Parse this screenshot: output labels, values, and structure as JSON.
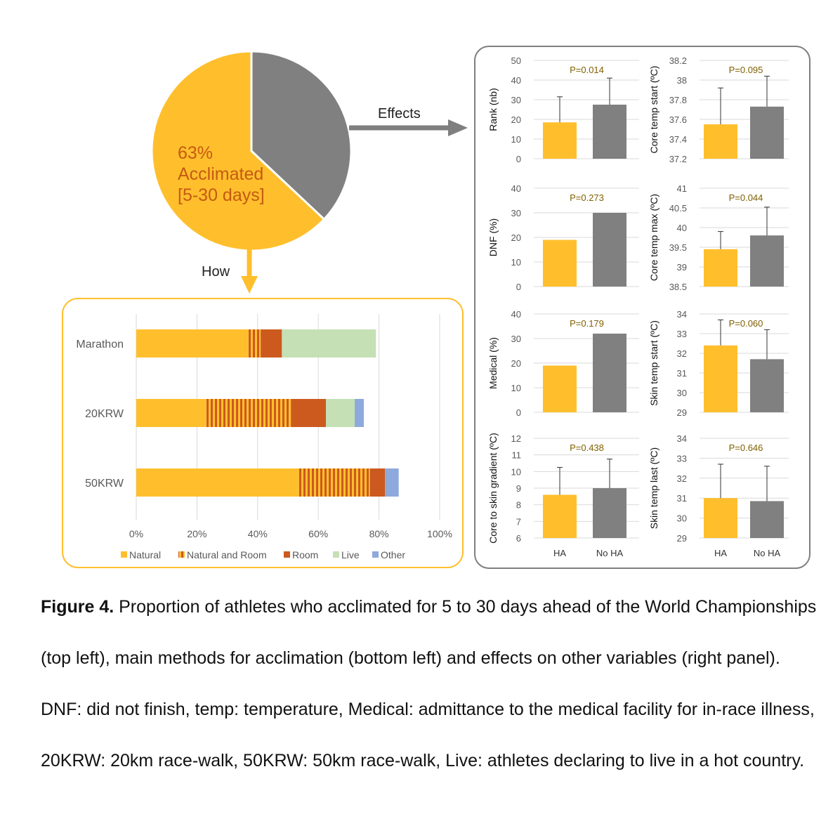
{
  "caption": {
    "label": "Figure 4.",
    "text": " Proportion of athletes who acclimated for 5 to 30 days ahead of the World Championships (top left), main methods for acclimation (bottom left) and effects on other variables (right panel). DNF: did not finish, temp: temperature, Medical: admittance to the medical facility for in-race illness, 20KRW: 20km race-walk, 50KRW: 50km race-walk, Live: athletes declaring to live in a hot country."
  },
  "colors": {
    "natural": "#FFBF2D",
    "room": "#CC5A1E",
    "live": "#C5E0B4",
    "other": "#8EA9DB",
    "noha": "#808080",
    "pvalue": "#7F6000",
    "pie_text": "#C55A11"
  },
  "arrows": {
    "effects_label": "Effects",
    "how_label": "How"
  },
  "chart_data": [
    {
      "type": "pie",
      "slices": [
        {
          "label": "63%\nAcclimated\n[5-30 days]",
          "value": 63,
          "color": "#FFBF2D"
        },
        {
          "label": "",
          "value": 37,
          "color": "#808080"
        }
      ],
      "label_lines": [
        "63%",
        "Acclimated",
        "[5-30 days]"
      ]
    },
    {
      "type": "bar",
      "orientation": "horizontal",
      "stacked": true,
      "categories": [
        "Marathon",
        "20KRW",
        "50KRW"
      ],
      "series": [
        {
          "name": "Natural",
          "values": [
            37,
            23,
            53
          ],
          "color": "#FFBF2D"
        },
        {
          "name": "Natural and Room",
          "values": [
            4,
            28,
            24
          ],
          "color": "striped"
        },
        {
          "name": "Room",
          "values": [
            7,
            11.5,
            5
          ],
          "color": "#CC5A1E"
        },
        {
          "name": "Live",
          "values": [
            31,
            9.5,
            0
          ],
          "color": "#C5E0B4"
        },
        {
          "name": "Other",
          "values": [
            0,
            3,
            4.5
          ],
          "color": "#8EA9DB"
        }
      ],
      "xlim": [
        0,
        100
      ],
      "xticks": [
        "0%",
        "20%",
        "40%",
        "60%",
        "80%",
        "100%"
      ],
      "legend": "bottom"
    },
    {
      "type": "bar",
      "ylabel": "Rank (nb)",
      "categories": [
        "HA",
        "No HA"
      ],
      "values": [
        18.5,
        27.5
      ],
      "errors": [
        13,
        13.5
      ],
      "ylim": [
        0,
        50
      ],
      "yticks": [
        "0",
        "10",
        "20",
        "30",
        "40",
        "50"
      ],
      "p": "P=0.014"
    },
    {
      "type": "bar",
      "ylabel": "Core temp start (ºC)",
      "categories": [
        "HA",
        "No HA"
      ],
      "values": [
        37.55,
        37.73
      ],
      "errors": [
        0.37,
        0.31
      ],
      "ylim": [
        37.2,
        38.2
      ],
      "yticks": [
        "37.2",
        "37.4",
        "37.6",
        "37.8",
        "38",
        "38.2"
      ],
      "p": "P=0.095"
    },
    {
      "type": "bar",
      "ylabel": "DNF (%)",
      "categories": [
        "HA",
        "No HA"
      ],
      "values": [
        19,
        30
      ],
      "errors": [
        0,
        0
      ],
      "ylim": [
        0,
        40
      ],
      "yticks": [
        "0",
        "10",
        "20",
        "30",
        "40"
      ],
      "p": "P=0.273"
    },
    {
      "type": "bar",
      "ylabel": "Core temp max (ºC)",
      "categories": [
        "HA",
        "No HA"
      ],
      "values": [
        39.45,
        39.8
      ],
      "errors": [
        0.45,
        0.72
      ],
      "ylim": [
        38.5,
        41
      ],
      "yticks": [
        "38.5",
        "39",
        "39.5",
        "40",
        "40.5",
        "41"
      ],
      "p": "P=0.044"
    },
    {
      "type": "bar",
      "ylabel": "Medical (%)",
      "categories": [
        "HA",
        "No HA"
      ],
      "values": [
        19,
        32
      ],
      "errors": [
        0,
        0
      ],
      "ylim": [
        0,
        40
      ],
      "yticks": [
        "0",
        "10",
        "20",
        "30",
        "40"
      ],
      "p": "P=0.179"
    },
    {
      "type": "bar",
      "ylabel": "Skin temp start (ºC)",
      "categories": [
        "HA",
        "No HA"
      ],
      "values": [
        32.4,
        31.7
      ],
      "errors": [
        1.3,
        1.5
      ],
      "ylim": [
        29,
        34
      ],
      "yticks": [
        "29",
        "30",
        "31",
        "32",
        "33",
        "34"
      ],
      "p": "P=0.060"
    },
    {
      "type": "bar",
      "ylabel": "Core to skin gradient (ºC)",
      "categories": [
        "HA",
        "No HA"
      ],
      "values": [
        8.6,
        9
      ],
      "errors": [
        1.65,
        1.75
      ],
      "ylim": [
        6,
        12
      ],
      "yticks": [
        "6",
        "7",
        "8",
        "9",
        "10",
        "11",
        "12"
      ],
      "p": "P=0.438"
    },
    {
      "type": "bar",
      "ylabel": "Skin temp last (ºC)",
      "categories": [
        "HA",
        "No HA"
      ],
      "values": [
        31,
        30.85
      ],
      "errors": [
        1.7,
        1.75
      ],
      "ylim": [
        29,
        34
      ],
      "yticks": [
        "29",
        "30",
        "31",
        "32",
        "33",
        "34"
      ],
      "p": "P=0.646"
    }
  ]
}
